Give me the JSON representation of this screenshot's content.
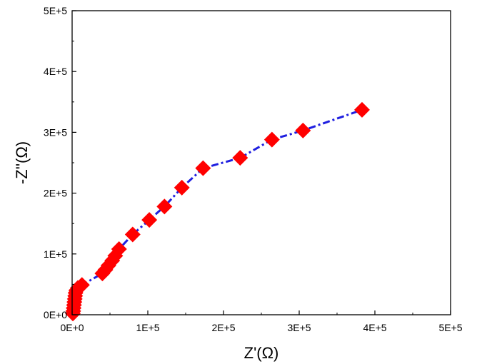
{
  "chart_data": {
    "type": "scatter",
    "title": "",
    "xlabel": "Z'(Ω)",
    "ylabel": "-Z''(Ω)",
    "xlim": [
      0,
      500000
    ],
    "ylim": [
      0,
      500000
    ],
    "x_ticks": [
      0,
      100000,
      200000,
      300000,
      400000,
      500000
    ],
    "x_tick_labels": [
      "0E+0",
      "1E+5",
      "2E+5",
      "3E+5",
      "4E+5",
      "5E+5"
    ],
    "y_ticks": [
      0,
      100000,
      200000,
      300000,
      400000,
      500000
    ],
    "y_tick_labels": [
      "0E+0",
      "1E+5",
      "2E+5",
      "3E+5",
      "4E+5",
      "5E+5"
    ],
    "grid": false,
    "legend": "none",
    "series": [
      {
        "marker": "diamond",
        "marker_color": "#ff0000",
        "line_color": "#1f1fe0",
        "line_style": "dash-dot",
        "points": [
          {
            "x": 1000,
            "y": 2000
          },
          {
            "x": 1500,
            "y": 6000
          },
          {
            "x": 2000,
            "y": 11000
          },
          {
            "x": 2500,
            "y": 16000
          },
          {
            "x": 3000,
            "y": 21000
          },
          {
            "x": 3500,
            "y": 26000
          },
          {
            "x": 4000,
            "y": 31000
          },
          {
            "x": 4500,
            "y": 36000
          },
          {
            "x": 5500,
            "y": 40000
          },
          {
            "x": 7500,
            "y": 44000
          },
          {
            "x": 13000,
            "y": 49000
          },
          {
            "x": 40000,
            "y": 68000
          },
          {
            "x": 44000,
            "y": 74000
          },
          {
            "x": 48000,
            "y": 81000
          },
          {
            "x": 53000,
            "y": 89000
          },
          {
            "x": 57000,
            "y": 97000
          },
          {
            "x": 62000,
            "y": 108000
          },
          {
            "x": 80000,
            "y": 132000
          },
          {
            "x": 102000,
            "y": 156000
          },
          {
            "x": 122000,
            "y": 178000
          },
          {
            "x": 145000,
            "y": 209000
          },
          {
            "x": 173000,
            "y": 241000
          },
          {
            "x": 222000,
            "y": 258000
          },
          {
            "x": 264000,
            "y": 288000
          },
          {
            "x": 305000,
            "y": 303000
          },
          {
            "x": 383000,
            "y": 337000
          }
        ]
      }
    ]
  }
}
